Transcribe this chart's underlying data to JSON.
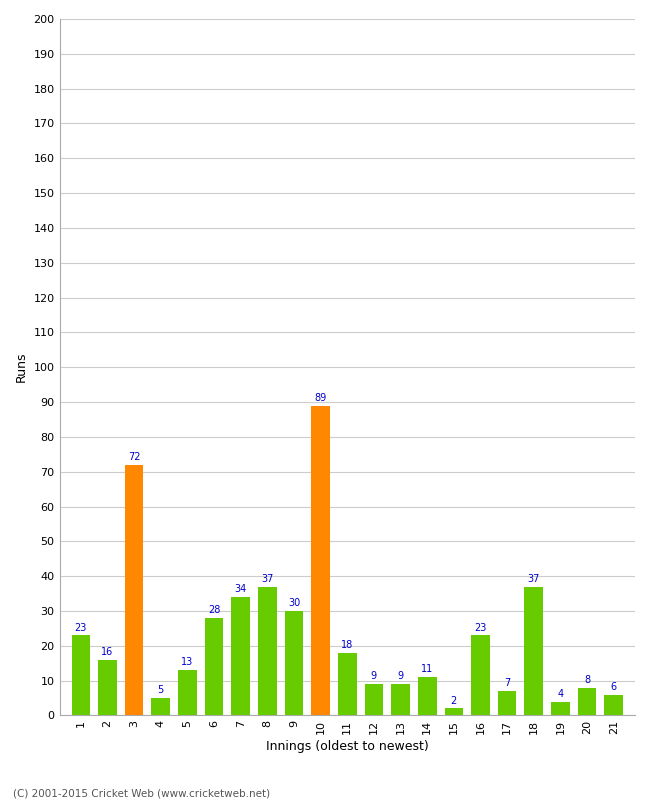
{
  "innings": [
    1,
    2,
    3,
    4,
    5,
    6,
    7,
    8,
    9,
    10,
    11,
    12,
    13,
    14,
    15,
    16,
    17,
    18,
    19,
    20,
    21
  ],
  "values": [
    23,
    16,
    72,
    5,
    13,
    28,
    34,
    37,
    30,
    89,
    18,
    9,
    9,
    11,
    2,
    23,
    7,
    37,
    4,
    8,
    6
  ],
  "bar_colors": [
    "#66cc00",
    "#66cc00",
    "#ff8800",
    "#66cc00",
    "#66cc00",
    "#66cc00",
    "#66cc00",
    "#66cc00",
    "#66cc00",
    "#ff8800",
    "#66cc00",
    "#66cc00",
    "#66cc00",
    "#66cc00",
    "#66cc00",
    "#66cc00",
    "#66cc00",
    "#66cc00",
    "#66cc00",
    "#66cc00",
    "#66cc00"
  ],
  "x_labels": [
    "1",
    "2",
    "3",
    "4",
    "5",
    "6",
    "7",
    "8",
    "9",
    "10",
    "11",
    "12",
    "13",
    "14",
    "15",
    "16",
    "17",
    "18",
    "19",
    "20",
    "21"
  ],
  "xlabel": "Innings (oldest to newest)",
  "ylabel": "Runs",
  "ylim": [
    0,
    200
  ],
  "ytick_interval": 10,
  "label_color": "#0000cc",
  "bg_color": "#ffffff",
  "grid_color": "#cccccc",
  "footer": "(C) 2001-2015 Cricket Web (www.cricketweb.net)"
}
